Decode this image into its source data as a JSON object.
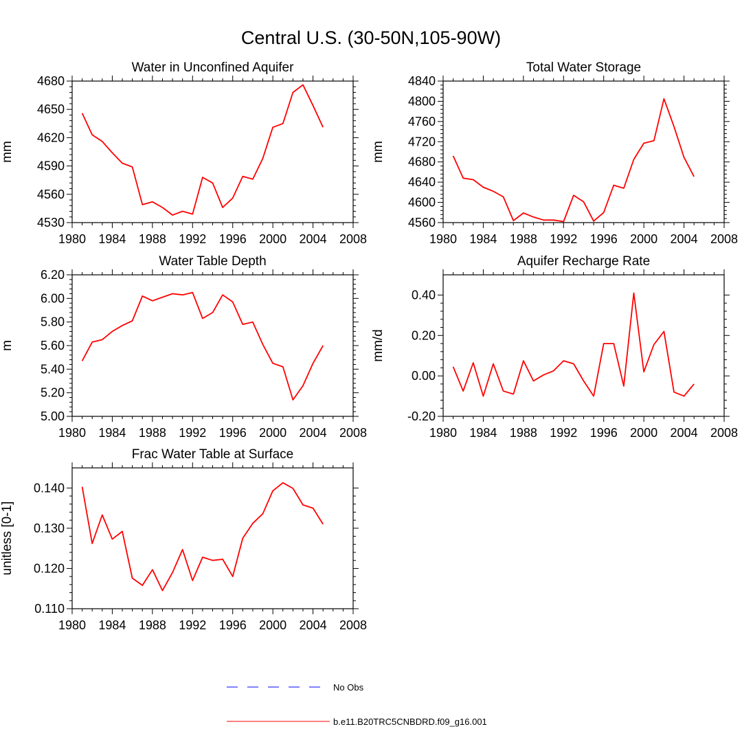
{
  "figure": {
    "title": "Central U.S. (30-50N,105-90W)",
    "line_color": "#ff0000",
    "obs_color": "#0000ff"
  },
  "legend": {
    "obs_label": "No Obs",
    "model_label": "b.e11.B20TRC5CNBDRD.f09_g16.001"
  },
  "chart_data": [
    {
      "type": "line",
      "title": "Water in Unconfined Aquifer",
      "xlabel": "",
      "ylabel": "mm",
      "xlim": [
        1980,
        2008
      ],
      "ylim": [
        4530,
        4680
      ],
      "xticks": [
        1980,
        1984,
        1988,
        1992,
        1996,
        2000,
        2004,
        2008
      ],
      "xtick_labels": [
        "1980",
        "1984",
        "1988",
        "1992",
        "1996",
        "2000",
        "2004",
        "2008"
      ],
      "yticks": [
        4530,
        4560,
        4590,
        4620,
        4650,
        4680
      ],
      "ytick_labels": [
        "4530",
        "4560",
        "4590",
        "4620",
        "4650",
        "4680"
      ],
      "x": [
        1981,
        1982,
        1983,
        1984,
        1985,
        1986,
        1987,
        1988,
        1989,
        1990,
        1991,
        1992,
        1993,
        1994,
        1995,
        1996,
        1997,
        1998,
        1999,
        2000,
        2001,
        2002,
        2003,
        2004,
        2005
      ],
      "series": [
        {
          "name": "b.e11.B20TRC5CNBDRD.f09_g16.001",
          "values": [
            4646,
            4623,
            4616,
            4604,
            4593,
            4589,
            4549,
            4552,
            4546,
            4538,
            4542,
            4539,
            4578,
            4572,
            4546,
            4556,
            4579,
            4576,
            4598,
            4631,
            4635,
            4668,
            4676,
            4654,
            4631
          ]
        }
      ]
    },
    {
      "type": "line",
      "title": "Total Water Storage",
      "xlabel": "",
      "ylabel": "mm",
      "xlim": [
        1980,
        2008
      ],
      "ylim": [
        4560,
        4840
      ],
      "xticks": [
        1980,
        1984,
        1988,
        1992,
        1996,
        2000,
        2004,
        2008
      ],
      "xtick_labels": [
        "1980",
        "1984",
        "1988",
        "1992",
        "1996",
        "2000",
        "2004",
        "2008"
      ],
      "yticks": [
        4560,
        4600,
        4640,
        4680,
        4720,
        4760,
        4800,
        4840
      ],
      "ytick_labels": [
        "4560",
        "4600",
        "4640",
        "4680",
        "4720",
        "4760",
        "4800",
        "4840"
      ],
      "x": [
        1981,
        1982,
        1983,
        1984,
        1985,
        1986,
        1987,
        1988,
        1989,
        1990,
        1991,
        1992,
        1993,
        1994,
        1995,
        1996,
        1997,
        1998,
        1999,
        2000,
        2001,
        2002,
        2003,
        2004,
        2005
      ],
      "series": [
        {
          "name": "b.e11.B20TRC5CNBDRD.f09_g16.001",
          "values": [
            4692,
            4648,
            4645,
            4630,
            4622,
            4611,
            4564,
            4579,
            4571,
            4565,
            4565,
            4562,
            4614,
            4601,
            4563,
            4580,
            4634,
            4628,
            4685,
            4717,
            4722,
            4805,
            4750,
            4689,
            4651
          ]
        }
      ]
    },
    {
      "type": "line",
      "title": "Water Table Depth",
      "xlabel": "",
      "ylabel": "m",
      "xlim": [
        1980,
        2008
      ],
      "ylim": [
        5.0,
        6.2
      ],
      "xticks": [
        1980,
        1984,
        1988,
        1992,
        1996,
        2000,
        2004,
        2008
      ],
      "xtick_labels": [
        "1980",
        "1984",
        "1988",
        "1992",
        "1996",
        "2000",
        "2004",
        "2008"
      ],
      "yticks": [
        5.0,
        5.2,
        5.4,
        5.6,
        5.8,
        6.0,
        6.2
      ],
      "ytick_labels": [
        "5.00",
        "5.20",
        "5.40",
        "5.60",
        "5.80",
        "6.00",
        "6.20"
      ],
      "x": [
        1981,
        1982,
        1983,
        1984,
        1985,
        1986,
        1987,
        1988,
        1989,
        1990,
        1991,
        1992,
        1993,
        1994,
        1995,
        1996,
        1997,
        1998,
        1999,
        2000,
        2001,
        2002,
        2003,
        2004,
        2005
      ],
      "series": [
        {
          "name": "b.e11.B20TRC5CNBDRD.f09_g16.001",
          "values": [
            5.47,
            5.63,
            5.65,
            5.72,
            5.77,
            5.81,
            6.02,
            5.98,
            6.01,
            6.04,
            6.03,
            6.05,
            5.83,
            5.88,
            6.03,
            5.97,
            5.78,
            5.8,
            5.61,
            5.45,
            5.42,
            5.14,
            5.26,
            5.45,
            5.6
          ]
        }
      ]
    },
    {
      "type": "line",
      "title": "Aquifer Recharge Rate",
      "xlabel": "",
      "ylabel": "mm/d",
      "xlim": [
        1980,
        2008
      ],
      "ylim": [
        -0.2,
        0.5
      ],
      "xticks": [
        1980,
        1984,
        1988,
        1992,
        1996,
        2000,
        2004,
        2008
      ],
      "xtick_labels": [
        "1980",
        "1984",
        "1988",
        "1992",
        "1996",
        "2000",
        "2004",
        "2008"
      ],
      "yticks": [
        -0.2,
        0.0,
        0.2,
        0.4
      ],
      "ytick_labels": [
        "-0.20",
        "0.00",
        "0.20",
        "0.40"
      ],
      "x": [
        1981,
        1982,
        1983,
        1984,
        1985,
        1986,
        1987,
        1988,
        1989,
        1990,
        1991,
        1992,
        1993,
        1994,
        1995,
        1996,
        1997,
        1998,
        1999,
        2000,
        2001,
        2002,
        2003,
        2004,
        2005
      ],
      "series": [
        {
          "name": "b.e11.B20TRC5CNBDRD.f09_g16.001",
          "values": [
            0.045,
            -0.075,
            0.065,
            -0.1,
            0.06,
            -0.075,
            -0.09,
            0.075,
            -0.025,
            0.005,
            0.025,
            0.075,
            0.06,
            -0.025,
            -0.1,
            0.16,
            0.16,
            -0.05,
            0.41,
            0.02,
            0.155,
            0.22,
            -0.08,
            -0.1,
            -0.04
          ]
        }
      ]
    },
    {
      "type": "line",
      "title": "Frac Water Table at Surface",
      "xlabel": "",
      "ylabel": "unitless [0-1]",
      "xlim": [
        1980,
        2008
      ],
      "ylim": [
        0.11,
        0.145
      ],
      "xticks": [
        1980,
        1984,
        1988,
        1992,
        1996,
        2000,
        2004,
        2008
      ],
      "xtick_labels": [
        "1980",
        "1984",
        "1988",
        "1992",
        "1996",
        "2000",
        "2004",
        "2008"
      ],
      "yticks": [
        0.11,
        0.12,
        0.13,
        0.14
      ],
      "ytick_labels": [
        "0.110",
        "0.120",
        "0.130",
        "0.140"
      ],
      "x": [
        1981,
        1982,
        1983,
        1984,
        1985,
        1986,
        1987,
        1988,
        1989,
        1990,
        1991,
        1992,
        1993,
        1994,
        1995,
        1996,
        1997,
        1998,
        1999,
        2000,
        2001,
        2002,
        2003,
        2004,
        2005
      ],
      "series": [
        {
          "name": "b.e11.B20TRC5CNBDRD.f09_g16.001",
          "values": [
            0.1403,
            0.1262,
            0.1333,
            0.1273,
            0.1292,
            0.1176,
            0.1158,
            0.1197,
            0.1145,
            0.119,
            0.1247,
            0.117,
            0.1228,
            0.122,
            0.1223,
            0.118,
            0.1275,
            0.1312,
            0.1336,
            0.1393,
            0.1413,
            0.1399,
            0.1358,
            0.135,
            0.131
          ]
        }
      ]
    }
  ]
}
